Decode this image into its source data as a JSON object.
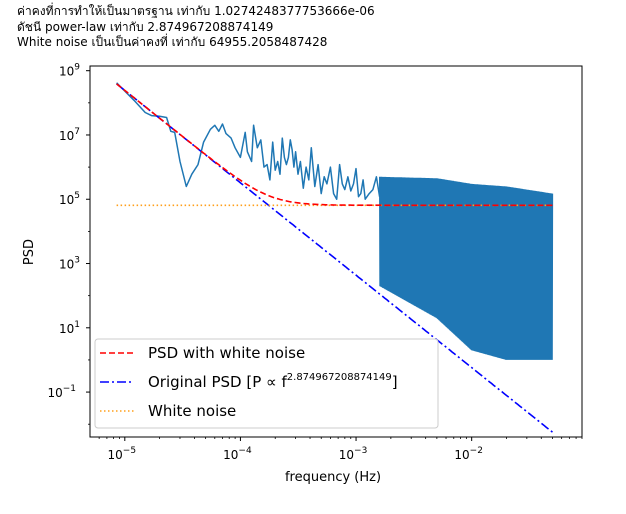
{
  "figure": {
    "title_lines": [
      "ค่าคงที่การทำให้เป็นมาตรฐาน เท่ากับ 1.0274248377753666e-06",
      "ดัชนี power-law เท่ากับ 2.874967208874149",
      "White noise เป็นเป็นค่าคงที่ เท่ากับ 64955.2058487428"
    ]
  },
  "chart_data": {
    "type": "line",
    "title": "",
    "xlabel": "frequency (Hz)",
    "ylabel": "PSD",
    "xscale": "log",
    "yscale": "log",
    "xlim": [
      5e-06,
      0.09
    ],
    "ylim": [
      0.004,
      1400000000.0
    ],
    "x_ticks": [
      {
        "value": 1e-05,
        "base": "10",
        "exp": "−5"
      },
      {
        "value": 0.0001,
        "base": "10",
        "exp": "−4"
      },
      {
        "value": 0.001,
        "base": "10",
        "exp": "−3"
      },
      {
        "value": 0.01,
        "base": "10",
        "exp": "−2"
      }
    ],
    "y_ticks": [
      {
        "value": 1000000000.0,
        "base": "10",
        "exp": "9"
      },
      {
        "value": 10000000.0,
        "base": "10",
        "exp": "7"
      },
      {
        "value": 100000.0,
        "base": "10",
        "exp": "5"
      },
      {
        "value": 1000.0,
        "base": "10",
        "exp": "3"
      },
      {
        "value": 10.0,
        "base": "10",
        "exp": "1"
      },
      {
        "value": 0.1,
        "base": "10",
        "exp": "−1"
      }
    ],
    "grid": false,
    "legend_position": "lower-left",
    "model": {
      "normalization": 1.0274248377753666e-06,
      "index": 2.874967208874149,
      "white_noise": 64955.2058487428,
      "f_min": 8.5e-06,
      "f_max": 0.05
    },
    "series": [
      {
        "name": "",
        "kind": "observed",
        "color": "#1f77b4",
        "style": "solid",
        "points": [
          [
            8.5e-06,
            420000000.0
          ],
          [
            1.2e-05,
            120000000.0
          ],
          [
            1.5e-05,
            50000000.0
          ],
          [
            1.7e-05,
            40000000.0
          ],
          [
            2e-05,
            38000000.0
          ],
          [
            2.3e-05,
            35000000.0
          ],
          [
            2.5e-05,
            13000000.0
          ],
          [
            2.7e-05,
            12000000.0
          ],
          [
            3e-05,
            1500000.0
          ],
          [
            3.4e-05,
            250000.0
          ],
          [
            3.8e-05,
            600000.0
          ],
          [
            4.3e-05,
            1200000.0
          ],
          [
            4.8e-05,
            6000000.0
          ],
          [
            5.5e-05,
            15000000.0
          ],
          [
            6e-05,
            20000000.0
          ],
          [
            6.5e-05,
            13000000.0
          ],
          [
            7e-05,
            22000000.0
          ],
          [
            7.5e-05,
            11000000.0
          ],
          [
            8.3e-05,
            8000000.0
          ],
          [
            9e-05,
            4000000.0
          ],
          [
            0.0001,
            2000000.0
          ],
          [
            0.00011,
            12000000.0
          ],
          [
            0.000115,
            3000000.0
          ],
          [
            0.000125,
            1500000.0
          ],
          [
            0.00013,
            20000000.0
          ],
          [
            0.00014,
            4000000.0
          ],
          [
            0.00015,
            7000000.0
          ],
          [
            0.00016,
            1000000.0
          ],
          [
            0.00017,
            1200000.0
          ],
          [
            0.00018,
            400000.0
          ],
          [
            0.00019,
            6000000.0
          ],
          [
            0.0002,
            800000.0
          ],
          [
            0.00021,
            1500000.0
          ],
          [
            0.00022,
            600000.0
          ],
          [
            0.00023,
            8000000.0
          ],
          [
            0.00024,
            2000000.0
          ],
          [
            0.00025,
            1200000.0
          ],
          [
            0.00026,
            2000000.0
          ],
          [
            0.00027,
            7000000.0
          ],
          [
            0.00028,
            3500000.0
          ],
          [
            0.00029,
            1000000.0
          ],
          [
            0.0003,
            3000000.0
          ],
          [
            0.000315,
            600000.0
          ],
          [
            0.00033,
            1500000.0
          ],
          [
            0.00035,
            220000.0
          ],
          [
            0.00037,
            1000000.0
          ],
          [
            0.00039,
            400000.0
          ],
          [
            0.00041,
            4000000.0
          ],
          [
            0.00044,
            250000.0
          ],
          [
            0.00047,
            1200000.0
          ],
          [
            0.0005,
            150000.0
          ],
          [
            0.00053,
            500000.0
          ],
          [
            0.00056,
            300000.0
          ],
          [
            0.0006,
            1000000.0
          ],
          [
            0.00064,
            150000.0
          ],
          [
            0.00068,
            100000.0
          ],
          [
            0.00072,
            1200000.0
          ],
          [
            0.00076,
            300000.0
          ],
          [
            0.0008,
            200000.0
          ],
          [
            0.00085,
            500000.0
          ],
          [
            0.0009,
            180000.0
          ],
          [
            0.00095,
            300000.0
          ],
          [
            0.001,
            900000.0
          ],
          [
            0.00105,
            120000.0
          ],
          [
            0.0011,
            150000.0
          ],
          [
            0.00115,
            400000.0
          ],
          [
            0.0012,
            100000.0
          ],
          [
            0.0013,
            150000.0
          ],
          [
            0.0014,
            200000.0
          ],
          [
            0.0015,
            500000.0
          ],
          [
            0.0016,
            120000.0
          ]
        ],
        "noise_band": {
          "from": 0.0016,
          "to": 0.05,
          "upper": [
            [
              0.0016,
              500000.0
            ],
            [
              0.005,
              450000.0
            ],
            [
              0.01,
              300000.0
            ],
            [
              0.02,
              250000.0
            ],
            [
              0.05,
              150000.0
            ]
          ],
          "lower": [
            [
              0.0016,
              200.0
            ],
            [
              0.005,
              20.0
            ],
            [
              0.01,
              2.0
            ],
            [
              0.02,
              1.0
            ],
            [
              0.05,
              1.0
            ]
          ]
        }
      },
      {
        "name": "PSD with white noise",
        "kind": "model_total",
        "color": "#ff0000",
        "style": "dashed"
      },
      {
        "name": "Original PSD [P ∝ f",
        "name_sup": "2.874967208874149",
        "name_after": "]",
        "kind": "model_powerlaw",
        "color": "#0000ff",
        "style": "dashdot"
      },
      {
        "name": "White noise",
        "kind": "model_white",
        "color": "#ff9f1a",
        "style": "dotted"
      }
    ]
  }
}
